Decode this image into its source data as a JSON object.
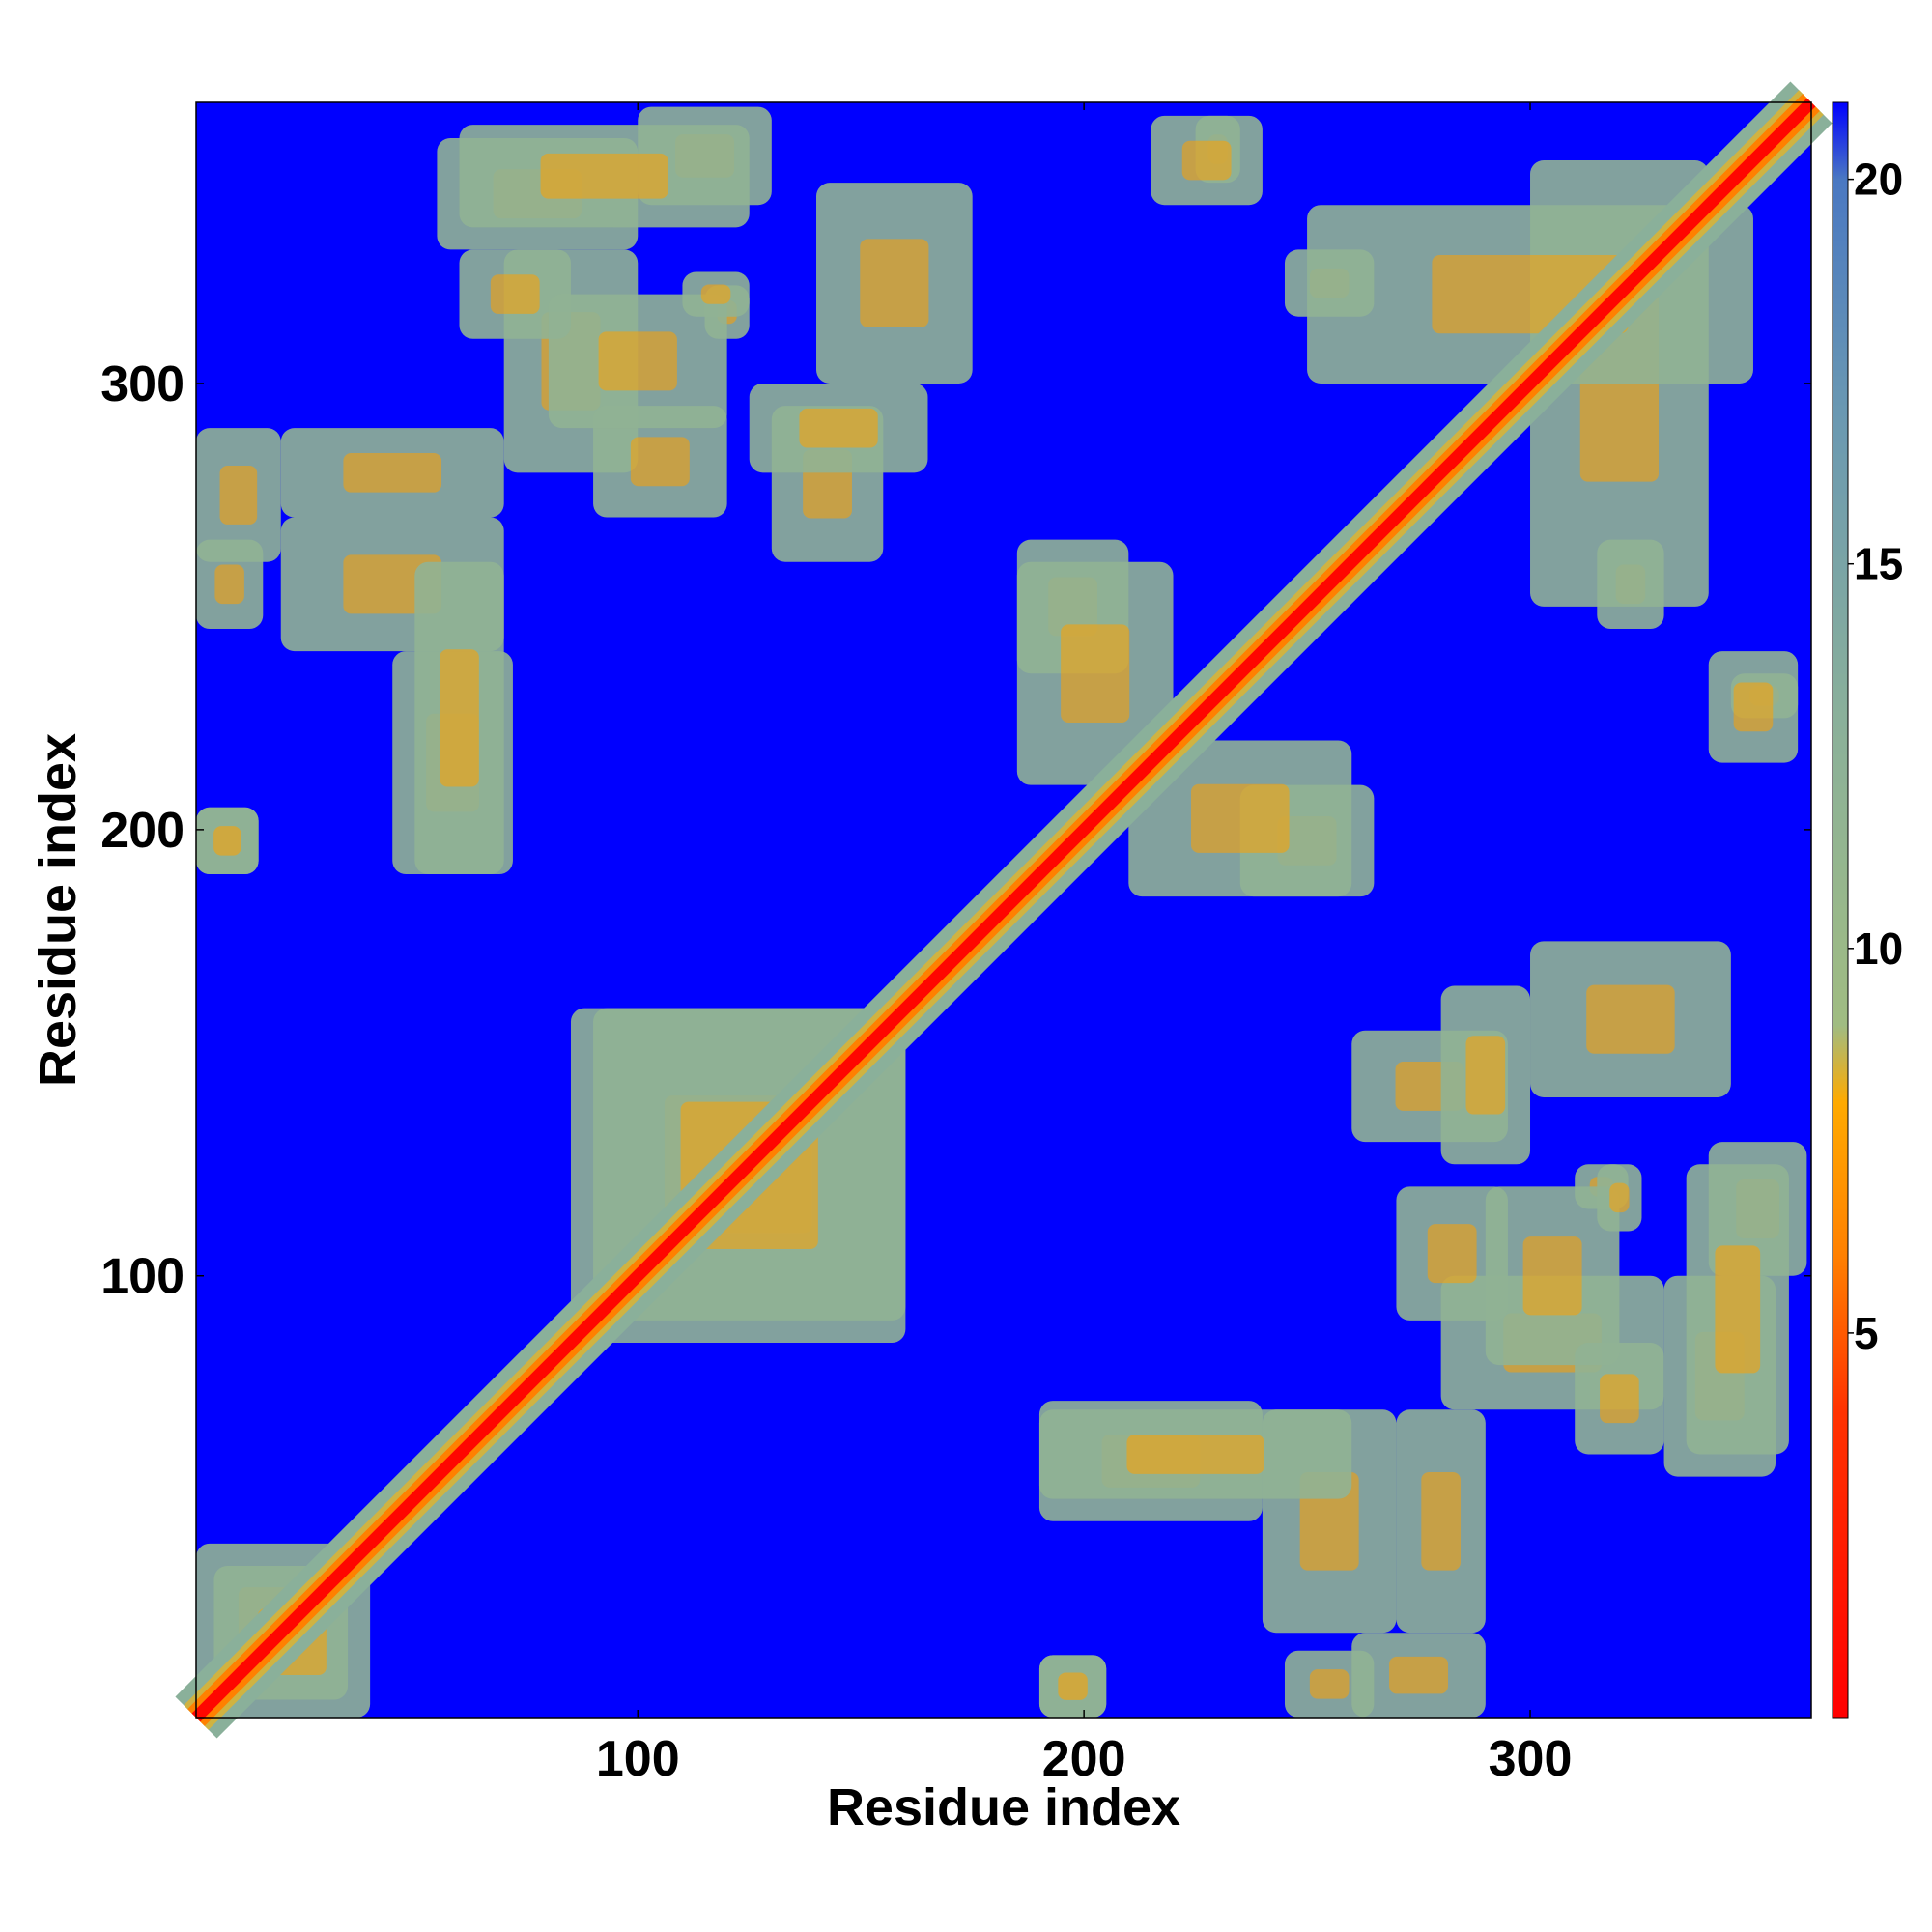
{
  "chart_data": {
    "type": "heatmap",
    "title": "",
    "xlabel": "Residue index",
    "ylabel": "Residue index",
    "n_residues": 363,
    "xlim": [
      1,
      363
    ],
    "ylim": [
      1,
      363
    ],
    "x_ticks": [
      100,
      200,
      300
    ],
    "y_ticks": [
      100,
      200,
      300
    ],
    "colorbar": {
      "range": [
        0,
        21
      ],
      "ticks": [
        5,
        10,
        15,
        20
      ],
      "stops": [
        {
          "value": 0,
          "color": "#ff0000"
        },
        {
          "value": 4,
          "color": "#ff3300"
        },
        {
          "value": 6,
          "color": "#ff8000"
        },
        {
          "value": 8,
          "color": "#ffaa00"
        },
        {
          "value": 9,
          "color": "#a0bc82"
        },
        {
          "value": 13,
          "color": "#8ab09a"
        },
        {
          "value": 17,
          "color": "#6a98b2"
        },
        {
          "value": 20,
          "color": "#4a78c2"
        },
        {
          "value": 21,
          "color": "#0000ff"
        }
      ]
    },
    "background_color": "#0000ff",
    "diagonal_band_half_width": 5,
    "contact_regions": [
      {
        "x": [
          1,
          16
        ],
        "y": [
          245,
          265
        ]
      },
      {
        "x": [
          20,
          70
        ],
        "y": [
          240,
          270
        ]
      },
      {
        "x": [
          45,
          72
        ],
        "y": [
          190,
          240
        ]
      },
      {
        "x": [
          1,
          15
        ],
        "y": [
          190,
          205
        ]
      },
      {
        "x": [
          55,
          100
        ],
        "y": [
          330,
          355
        ]
      },
      {
        "x": [
          70,
          100
        ],
        "y": [
          280,
          330
        ]
      },
      {
        "x": [
          90,
          120
        ],
        "y": [
          270,
          295
        ]
      },
      {
        "x": [
          100,
          130
        ],
        "y": [
          340,
          362
        ]
      },
      {
        "x": [
          115,
          125
        ],
        "y": [
          310,
          322
        ]
      },
      {
        "x": [
          140,
          175
        ],
        "y": [
          300,
          345
        ]
      },
      {
        "x": [
          130,
          155
        ],
        "y": [
          260,
          295
        ]
      },
      {
        "x": [
          185,
          210
        ],
        "y": [
          235,
          265
        ]
      },
      {
        "x": [
          210,
          260
        ],
        "y": [
          185,
          220
        ]
      },
      {
        "x": [
          225,
          235
        ],
        "y": [
          345,
          360
        ]
      },
      {
        "x": [
          245,
          265
        ],
        "y": [
          315,
          330
        ]
      },
      {
        "x": [
          280,
          300
        ],
        "y": [
          125,
          165
        ]
      },
      {
        "x": [
          290,
          320
        ],
        "y": [
          80,
          120
        ]
      },
      {
        "x": [
          310,
          330
        ],
        "y": [
          60,
          85
        ]
      },
      {
        "x": [
          335,
          358
        ],
        "y": [
          60,
          125
        ]
      },
      {
        "x": [
          315,
          325
        ],
        "y": [
          110,
          125
        ]
      },
      {
        "x": [
          270,
          290
        ],
        "y": [
          20,
          70
        ]
      },
      {
        "x": [
          190,
          260
        ],
        "y": [
          50,
          70
        ]
      },
      {
        "x": [
          190,
          205
        ],
        "y": [
          1,
          15
        ]
      },
      {
        "x": [
          1,
          35
        ],
        "y": [
          5,
          40
        ]
      },
      {
        "x": [
          85,
          160
        ],
        "y": [
          90,
          160
        ]
      },
      {
        "x": [
          300,
          340
        ],
        "y": [
          250,
          350
        ]
      },
      {
        "x": [
          340,
          360
        ],
        "y": [
          215,
          240
        ]
      },
      {
        "x": [
          260,
          290
        ],
        "y": [
          1,
          20
        ]
      }
    ]
  }
}
